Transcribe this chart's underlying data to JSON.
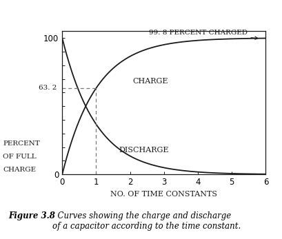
{
  "xlabel": "NO. OF TIME CONSTANTS",
  "xlim": [
    0,
    6
  ],
  "ylim": [
    0,
    105
  ],
  "ytick_vals": [
    0,
    10,
    20,
    30,
    40,
    50,
    60,
    70,
    80,
    90,
    100
  ],
  "xticks": [
    0,
    1,
    2,
    3,
    4,
    5,
    6
  ],
  "charge_label": "CHARGE",
  "discharge_label": "DISCHARGE",
  "annotation_text": "99. 8 PERCENT CHARGED",
  "annotation_63_text": "63. 2",
  "dashed_x": 1.0,
  "dashed_y": 63.2,
  "figure_caption_bold": "Figure 3.8",
  "figure_caption_rest": "  Curves showing the charge and discharge\nof a capacitor according to the time constant.",
  "bg_color": "#ffffff",
  "line_color": "#1a1a1a",
  "dashed_color": "#777777",
  "figsize": [
    4.1,
    3.47
  ],
  "dpi": 100,
  "ylabel_lines": [
    "PERCENT",
    "OF FULL",
    "CHARGE"
  ]
}
